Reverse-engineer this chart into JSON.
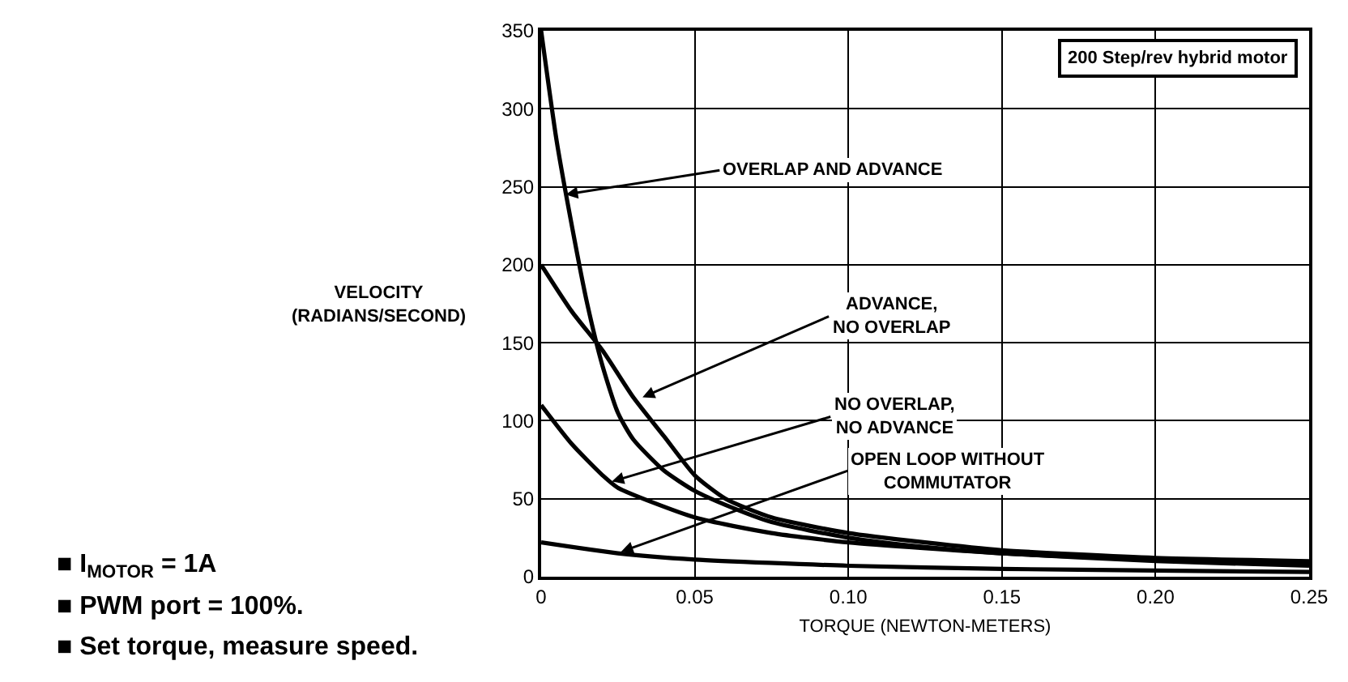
{
  "chart_data": {
    "type": "line",
    "xlabel": "TORQUE (NEWTON-METERS)",
    "ylabel": "VELOCITY\n(RADIANS/SECOND)",
    "xlim": [
      0,
      0.25
    ],
    "xticks": [
      0,
      0.05,
      {
        "value": 0.1,
        "label": "0.10"
      },
      0.15,
      {
        "value": 0.2,
        "label": "0.20"
      },
      0.25
    ],
    "ylim": [
      0,
      350
    ],
    "yticks": [
      0,
      50,
      100,
      150,
      200,
      250,
      300,
      350
    ],
    "grid": true,
    "marker": "none",
    "line_style": "solid",
    "series": [
      {
        "color": "#000000",
        "x": [
          0,
          0.005,
          0.01,
          0.015,
          0.02,
          0.025,
          0.03,
          0.04,
          0.05,
          0.06,
          0.075,
          0.1,
          0.125,
          0.15,
          0.2,
          0.25
        ],
        "values": [
          350,
          280,
          225,
          175,
          135,
          105,
          88,
          68,
          55,
          46,
          35,
          25,
          19,
          15,
          11,
          9
        ]
      },
      {
        "color": "#000000",
        "x": [
          0,
          0.01,
          0.02,
          0.03,
          0.04,
          0.05,
          0.06,
          0.075,
          0.1,
          0.125,
          0.15,
          0.2,
          0.25
        ],
        "values": [
          200,
          170,
          145,
          115,
          90,
          65,
          50,
          38,
          28,
          22,
          17,
          12,
          10
        ]
      },
      {
        "color": "#000000",
        "x": [
          0,
          0.01,
          0.02,
          0.025,
          0.05,
          0.075,
          0.1,
          0.15,
          0.2,
          0.25
        ],
        "values": [
          110,
          85,
          65,
          57,
          38,
          28,
          22,
          15,
          10,
          7
        ]
      },
      {
        "color": "#000000",
        "x": [
          0,
          0.025,
          0.05,
          0.1,
          0.15,
          0.2,
          0.25
        ],
        "values": [
          22,
          15,
          11,
          7,
          5,
          4,
          3
        ]
      }
    ],
    "annotations": [
      {
        "text": "OVERLAP AND ADVANCE",
        "x": 0.008,
        "y": 245
      },
      {
        "text": "ADVANCE,\nNO OVERLAP",
        "x": 0.033,
        "y": 115
      },
      {
        "text": "NO OVERLAP,\nNO ADVANCE",
        "x": 0.023,
        "y": 61
      },
      {
        "text": "OPEN LOOP WITHOUT\nCOMMUTATOR",
        "x": 0.026,
        "y": 16
      },
      "200 Step/rev hybrid motor",
      "■ I$_{MOTOR}$ = 1A",
      "■ PWM port = 100%.",
      "■ Set torque, measure speed."
    ]
  }
}
